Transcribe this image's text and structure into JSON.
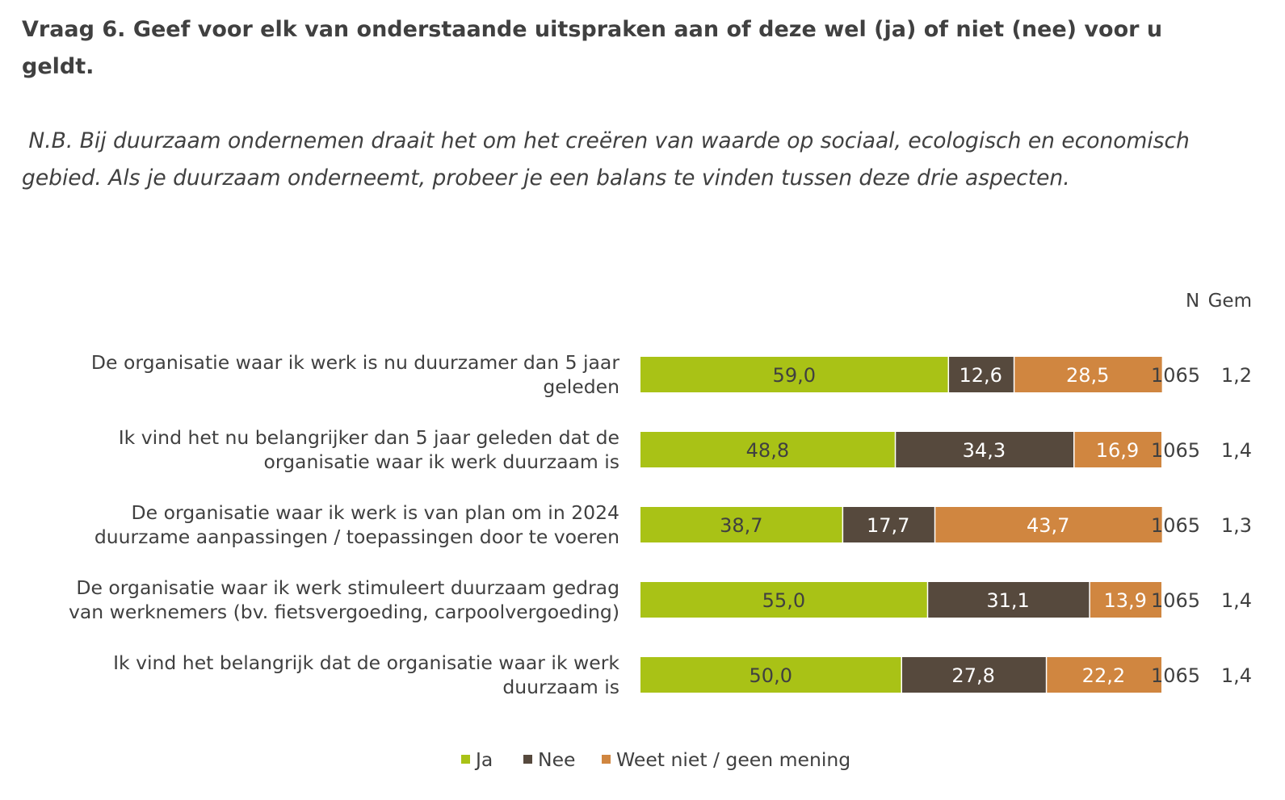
{
  "title": "Vraag 6. Geef voor elk van onderstaande uitspraken aan of deze wel (ja) of niet (nee) voor u geldt.",
  "note": " N.B. Bij duurzaam ondernemen draait het om het creëren van waarde op sociaal, ecologisch en economisch gebied. Als je duurzaam onderneemt, probeer je een balans te vinden tussen deze drie aspecten.",
  "chart_data": {
    "type": "bar",
    "orientation": "horizontal",
    "stacked": true,
    "xlim": [
      0,
      100
    ],
    "col_headers": {
      "n": "N",
      "gem": "Gem"
    },
    "categories": [
      [
        "De organisatie waar ik werk is nu duurzamer dan 5 jaar",
        "geleden"
      ],
      [
        "Ik vind het nu belangrijker dan 5 jaar geleden dat de",
        "organisatie waar ik werk duurzaam is"
      ],
      [
        "De organisatie waar ik werk is van plan om in 2024",
        "duurzame aanpassingen / toepassingen door te voeren"
      ],
      [
        "De organisatie waar ik werk stimuleert duurzaam gedrag",
        "van werknemers (bv. fietsvergoeding, carpoolvergoeding)"
      ],
      [
        "Ik vind het belangrijk dat de organisatie waar ik werk",
        "duurzaam is"
      ]
    ],
    "series": [
      {
        "name": "Ja",
        "color": "#A9C216",
        "label_color": "#404040",
        "values": [
          59.0,
          48.8,
          38.7,
          55.0,
          50.0
        ]
      },
      {
        "name": "Nee",
        "color": "#56493D",
        "label_color": "#ffffff",
        "values": [
          12.6,
          34.3,
          17.7,
          31.1,
          27.8
        ]
      },
      {
        "name": "Weet niet / geen mening",
        "color": "#D08640",
        "label_color": "#ffffff",
        "values": [
          28.5,
          16.9,
          43.7,
          13.9,
          22.2
        ]
      }
    ],
    "n": [
      "1065",
      "1065",
      "1065",
      "1065",
      "1065"
    ],
    "gem": [
      "1,2",
      "1,4",
      "1,3",
      "1,4",
      "1,4"
    ],
    "legend_position": "bottom"
  }
}
